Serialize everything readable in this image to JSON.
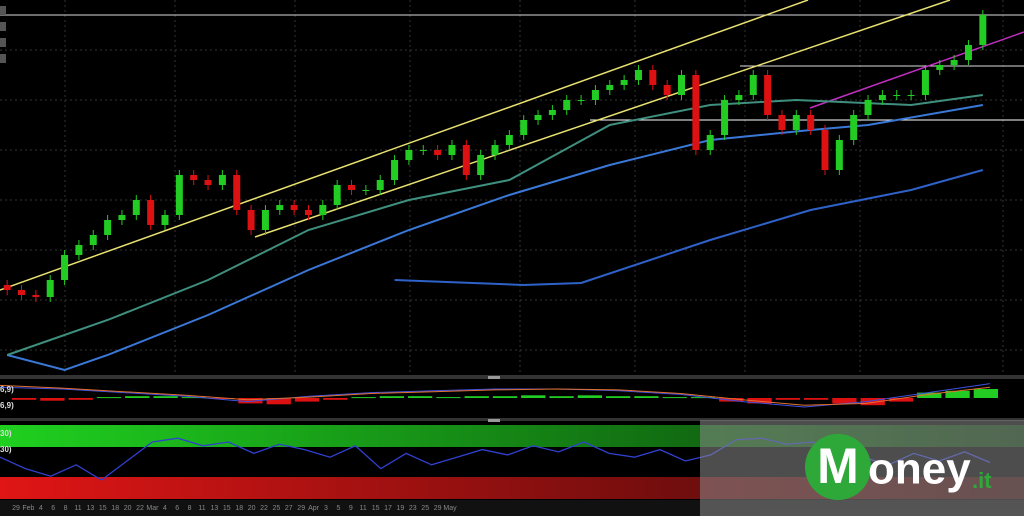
{
  "chart_data": {
    "type": "candlestick",
    "ylim": [
      0,
      375
    ],
    "xlim": [
      -0.5,
      68.5
    ],
    "open": [
      90,
      85,
      80,
      78,
      95,
      120,
      130,
      140,
      155,
      160,
      175,
      150,
      160,
      200,
      195,
      190,
      200,
      165,
      145,
      165,
      170,
      165,
      160,
      170,
      190,
      185,
      185,
      195,
      215,
      225,
      225,
      220,
      230,
      200,
      220,
      230,
      240,
      255,
      260,
      265,
      275,
      275,
      285,
      290,
      295,
      305,
      290,
      280,
      300,
      225,
      240,
      275,
      280,
      300,
      260,
      245,
      260,
      245,
      205,
      235,
      260,
      275,
      280,
      280,
      280,
      305,
      310,
      315,
      330
    ],
    "high": [
      95,
      90,
      85,
      100,
      125,
      135,
      145,
      160,
      165,
      180,
      180,
      165,
      205,
      205,
      200,
      205,
      205,
      170,
      170,
      175,
      175,
      170,
      175,
      195,
      195,
      190,
      200,
      220,
      230,
      230,
      230,
      235,
      235,
      225,
      235,
      245,
      260,
      265,
      270,
      280,
      280,
      290,
      295,
      300,
      310,
      310,
      295,
      305,
      305,
      245,
      280,
      285,
      305,
      305,
      265,
      265,
      265,
      250,
      240,
      265,
      280,
      285,
      285,
      285,
      310,
      315,
      320,
      335,
      365
    ],
    "low": [
      80,
      75,
      73,
      73,
      90,
      115,
      125,
      135,
      150,
      155,
      145,
      145,
      155,
      190,
      185,
      185,
      160,
      140,
      140,
      160,
      160,
      155,
      155,
      165,
      180,
      180,
      180,
      190,
      210,
      220,
      215,
      215,
      195,
      195,
      215,
      225,
      235,
      250,
      255,
      260,
      270,
      270,
      280,
      285,
      290,
      285,
      275,
      275,
      220,
      220,
      235,
      270,
      275,
      255,
      240,
      240,
      240,
      200,
      200,
      230,
      255,
      270,
      275,
      275,
      275,
      300,
      305,
      310,
      325
    ],
    "close": [
      85,
      80,
      78,
      95,
      120,
      130,
      140,
      155,
      160,
      175,
      150,
      160,
      200,
      195,
      190,
      200,
      165,
      145,
      165,
      170,
      165,
      160,
      170,
      190,
      185,
      185,
      195,
      215,
      225,
      225,
      220,
      230,
      200,
      220,
      230,
      240,
      255,
      260,
      265,
      275,
      275,
      285,
      290,
      295,
      305,
      290,
      280,
      300,
      225,
      240,
      275,
      280,
      300,
      260,
      245,
      260,
      245,
      205,
      235,
      260,
      275,
      280,
      280,
      280,
      305,
      310,
      315,
      330,
      360
    ],
    "up_color": "#22cc22",
    "down_color": "#dd1111",
    "lines": [
      {
        "color": "#3a78d8",
        "x": [
          0,
          4,
          7,
          14,
          21,
          28,
          35,
          42,
          49,
          56,
          60,
          68
        ],
        "values": [
          20,
          5,
          20,
          60,
          105,
          145,
          180,
          210,
          235,
          245,
          250,
          270
        ]
      },
      {
        "color": "#3f8f7f",
        "x": [
          0,
          7,
          14,
          21,
          28,
          35,
          42,
          49,
          55,
          63,
          68
        ],
        "values": [
          20,
          55,
          95,
          145,
          175,
          195,
          250,
          270,
          275,
          270,
          280
        ]
      },
      {
        "color": "#2f62c8",
        "x": [
          27,
          36,
          40,
          49,
          56,
          63,
          68
        ],
        "values": [
          95,
          90,
          92,
          135,
          165,
          185,
          205
        ]
      }
    ],
    "macd": {
      "ylim": [
        -1,
        1
      ],
      "labels": [
        "6,9)",
        "6,9)"
      ],
      "histogram": [
        -0.1,
        -0.15,
        -0.1,
        0.05,
        0.1,
        0.1,
        0.05,
        -0.05,
        -0.3,
        -0.35,
        -0.2,
        -0.1,
        0.05,
        0.1,
        0.1,
        0.05,
        0.1,
        0.1,
        0.15,
        0.1,
        0.15,
        0.1,
        0.1,
        0.05,
        0.05,
        -0.2,
        -0.3,
        -0.1,
        -0.1,
        -0.3,
        -0.4,
        -0.2,
        0.3,
        0.4,
        0.5
      ],
      "lines": [
        {
          "color": "#4050e0",
          "values": [
            0.6,
            0.5,
            0.3,
            0.1,
            -0.2,
            0.1,
            0.3,
            0.4,
            0.5,
            0.5,
            0.4,
            0.2,
            -0.2,
            -0.5,
            -0.2,
            0.3,
            0.8
          ]
        },
        {
          "color": "#e07030",
          "values": [
            0.7,
            0.55,
            0.35,
            0.15,
            -0.1,
            0.05,
            0.25,
            0.35,
            0.45,
            0.5,
            0.45,
            0.25,
            -0.1,
            -0.4,
            -0.3,
            0.2,
            0.6
          ]
        }
      ]
    },
    "rsi": {
      "ylim": [
        0,
        100
      ],
      "labels": [
        "30)",
        "30)"
      ],
      "color": "#3040d0",
      "values": [
        55,
        40,
        30,
        45,
        25,
        50,
        75,
        80,
        70,
        75,
        60,
        72,
        65,
        55,
        70,
        40,
        60,
        45,
        55,
        65,
        58,
        70,
        62,
        75,
        60,
        55,
        65,
        50,
        58,
        78,
        80,
        72,
        75,
        60,
        55,
        45,
        60,
        50,
        62,
        48
      ]
    },
    "x_axis_labels": [
      "29",
      "Feb",
      "4",
      "6",
      "8",
      "11",
      "13",
      "15",
      "18",
      "20",
      "22",
      "Mar",
      "4",
      "6",
      "8",
      "11",
      "13",
      "15",
      "18",
      "20",
      "22",
      "25",
      "27",
      "29",
      "Apr",
      "3",
      "5",
      "9",
      "11",
      "15",
      "17",
      "19",
      "23",
      "25",
      "29",
      "May"
    ]
  },
  "logo": {
    "initial": "M",
    "rest": "oney",
    "suffix": ".it"
  }
}
